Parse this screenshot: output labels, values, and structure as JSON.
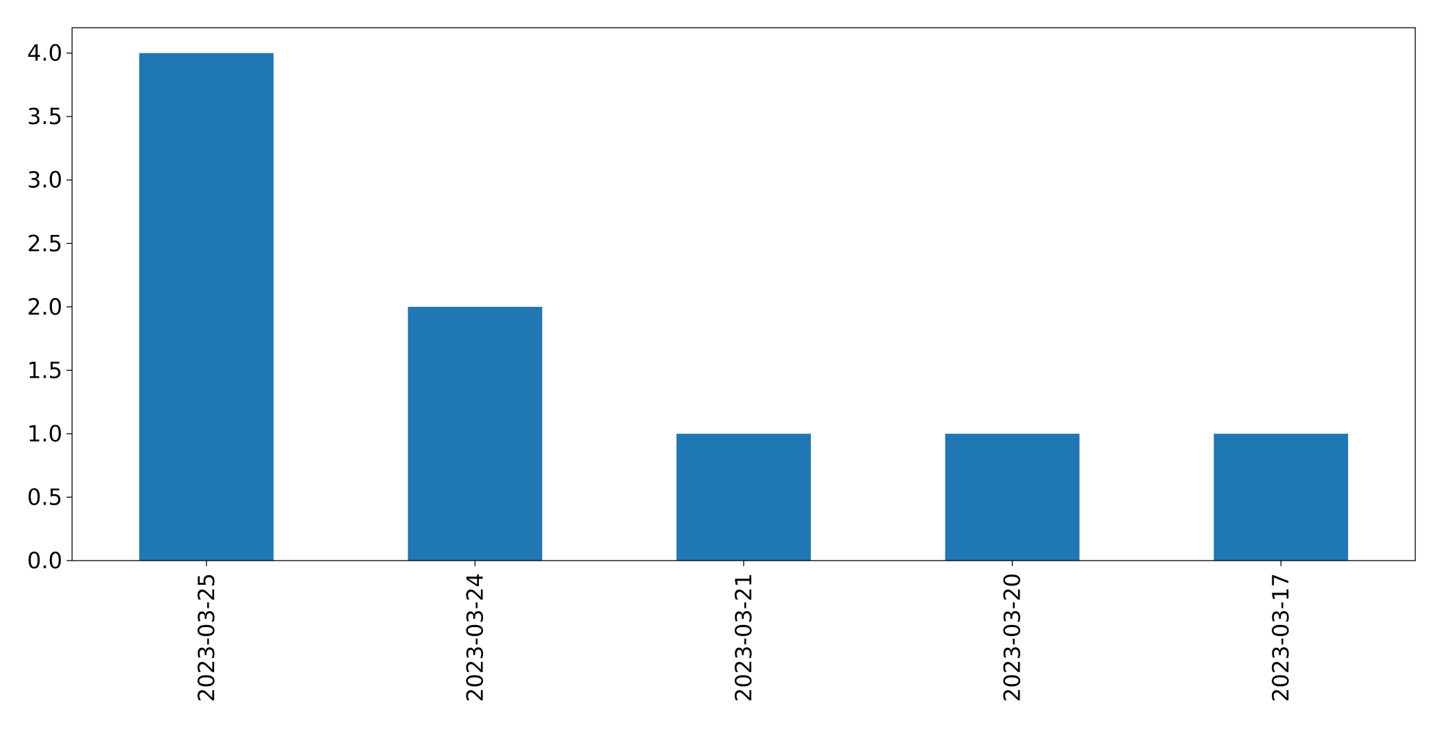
{
  "chart_data": {
    "type": "bar",
    "categories": [
      "2023-03-25",
      "2023-03-24",
      "2023-03-21",
      "2023-03-20",
      "2023-03-17"
    ],
    "values": [
      4,
      2,
      1,
      1,
      1
    ],
    "color": "#1f77b4",
    "ylim": [
      0,
      4.2
    ],
    "yticks": [
      {
        "value": 0,
        "label": "0.0"
      },
      0.5,
      {
        "value": 1,
        "label": "1.0"
      },
      1.5,
      {
        "value": 2,
        "label": "2.0"
      },
      2.5,
      {
        "value": 3,
        "label": "3.0"
      },
      3.5,
      {
        "value": 4,
        "label": "4.0"
      }
    ],
    "grid": false
  }
}
